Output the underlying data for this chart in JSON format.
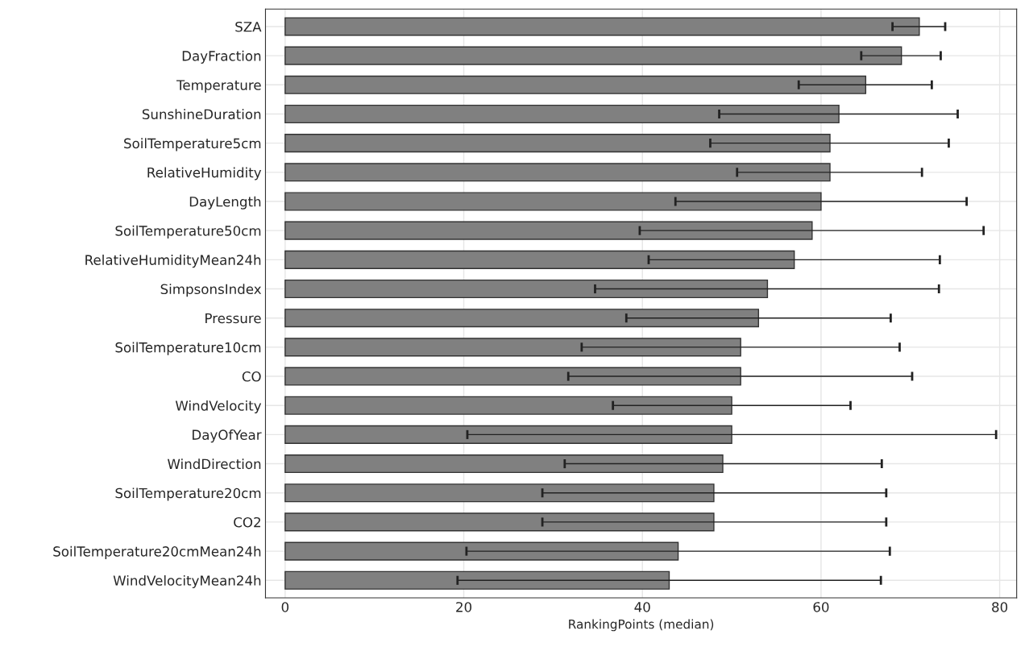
{
  "chart_data": {
    "type": "bar",
    "orientation": "horizontal",
    "xlabel": "RankingPoints (median)",
    "categories": [
      "SZA",
      "DayFraction",
      "Temperature",
      "SunshineDuration",
      "SoilTemperature5cm",
      "RelativeHumidity",
      "DayLength",
      "SoilTemperature50cm",
      "RelativeHumidityMean24h",
      "SimpsonsIndex",
      "Pressure",
      "SoilTemperature10cm",
      "CO",
      "WindVelocity",
      "DayOfYear",
      "WindDirection",
      "SoilTemperature20cm",
      "CO2",
      "SoilTemperature20cmMean24h",
      "WindVelocityMean24h"
    ],
    "values": [
      71,
      69,
      65,
      62,
      61,
      61,
      60,
      59,
      57,
      54,
      53,
      51,
      51,
      50,
      50,
      49,
      48,
      48,
      44,
      43
    ],
    "errors": [
      [
        68.0,
        73.9
      ],
      [
        64.5,
        73.4
      ],
      [
        57.5,
        72.4
      ],
      [
        48.6,
        75.3
      ],
      [
        47.6,
        74.3
      ],
      [
        50.6,
        71.3
      ],
      [
        43.7,
        76.3
      ],
      [
        39.7,
        78.2
      ],
      [
        40.7,
        73.3
      ],
      [
        34.7,
        73.2
      ],
      [
        38.2,
        67.8
      ],
      [
        33.2,
        68.8
      ],
      [
        31.7,
        70.2
      ],
      [
        36.7,
        63.3
      ],
      [
        20.4,
        79.6
      ],
      [
        31.3,
        66.8
      ],
      [
        28.8,
        67.3
      ],
      [
        28.8,
        67.3
      ],
      [
        20.3,
        67.7
      ],
      [
        19.3,
        66.7
      ]
    ],
    "color": "#808080",
    "xlim": [
      -2.2,
      81.9
    ],
    "xticks": [
      0,
      20,
      40,
      60,
      80
    ],
    "grid": true
  }
}
